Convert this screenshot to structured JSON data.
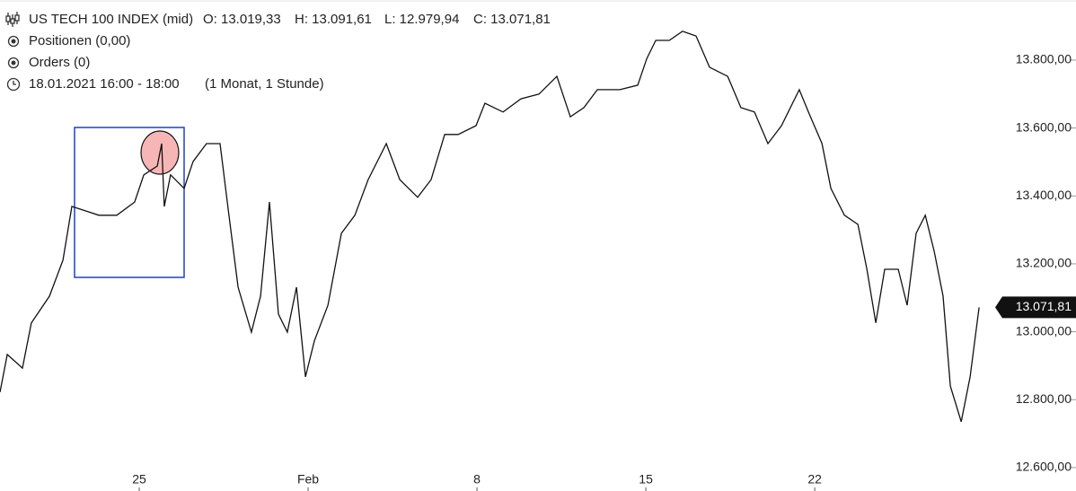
{
  "chart_data": {
    "type": "line",
    "title": "US TECH 100 INDEX (mid)",
    "ohlc": [
      "O: 13.019,33",
      "H: 13.091,61",
      "L: 12.979,94",
      "C: 13.071,81"
    ],
    "info": [
      "Positionen (0,00)",
      "Orders (0)"
    ],
    "period": "18.01.2021 16:00 - 18:00",
    "interval": "(1 Monat, 1 Stunde)",
    "price_tag": "13.071,81",
    "color": "#111111",
    "x": [
      19.23,
      19.53,
      20.16,
      20.53,
      21.28,
      21.84,
      22.21,
      22.77,
      23.33,
      24.07,
      24.81,
      25.19,
      25.75,
      25.93,
      26.04,
      26.3,
      26.86,
      27.23,
      27.79,
      28.35,
      28.72,
      29.1,
      29.65,
      30.03,
      30.4,
      30.77,
      31.14,
      31.52,
      31.89,
      32.26,
      32.82,
      33.38,
      33.94,
      34.49,
      35.24,
      35.8,
      36.54,
      37.1,
      37.66,
      38.22,
      38.96,
      39.33,
      40.08,
      40.82,
      41.57,
      42.31,
      42.87,
      43.43,
      43.99,
      44.92,
      45.66,
      46.04,
      46.41,
      46.97,
      47.52,
      48.08,
      48.64,
      49.39,
      49.94,
      50.5,
      51.06,
      51.62,
      52.36,
      52.74,
      53.3,
      53.67,
      54.23,
      54.79,
      55.16,
      55.53,
      55.9,
      56.46,
      56.83,
      57.2,
      57.58,
      57.95,
      58.32,
      58.62,
      59.07,
      59.44,
      59.81
    ],
    "values": [
      12822,
      12933,
      12893,
      13026,
      13105,
      13211,
      13369,
      13356,
      13343,
      13343,
      13382,
      13462,
      13488,
      13554,
      13369,
      13462,
      13422,
      13501,
      13554,
      13554,
      13343,
      13131,
      12999,
      13105,
      13382,
      13052,
      12999,
      13131,
      12867,
      12973,
      13078,
      13290,
      13343,
      13448,
      13554,
      13448,
      13396,
      13448,
      13581,
      13581,
      13607,
      13673,
      13647,
      13686,
      13700,
      13752,
      13633,
      13660,
      13713,
      13713,
      13726,
      13805,
      13858,
      13858,
      13885,
      13871,
      13779,
      13752,
      13660,
      13647,
      13554,
      13607,
      13713,
      13647,
      13554,
      13422,
      13343,
      13316,
      13184,
      13026,
      13184,
      13184,
      13078,
      13290,
      13343,
      13237,
      13105,
      12840,
      12735,
      12867,
      13071.81
    ],
    "xlim": [
      19.23,
      60.18
    ],
    "ylim": [
      12531,
      13977
    ],
    "xticks": [
      {
        "value": 25,
        "label": "25"
      },
      {
        "value": 32,
        "label": "Feb"
      },
      {
        "value": 39,
        "label": "8"
      },
      {
        "value": 46,
        "label": "15"
      },
      {
        "value": 53,
        "label": "22"
      }
    ],
    "yticks": [
      {
        "value": 12600,
        "label": "12.600,00"
      },
      {
        "value": 12800,
        "label": "12.800,00"
      },
      {
        "value": 13000,
        "label": "13.000,00"
      },
      {
        "value": 13200,
        "label": "13.200,00"
      },
      {
        "value": 13400,
        "label": "13.400,00"
      },
      {
        "value": 13600,
        "label": "13.600,00"
      },
      {
        "value": 13800,
        "label": "13.800,00"
      }
    ]
  }
}
